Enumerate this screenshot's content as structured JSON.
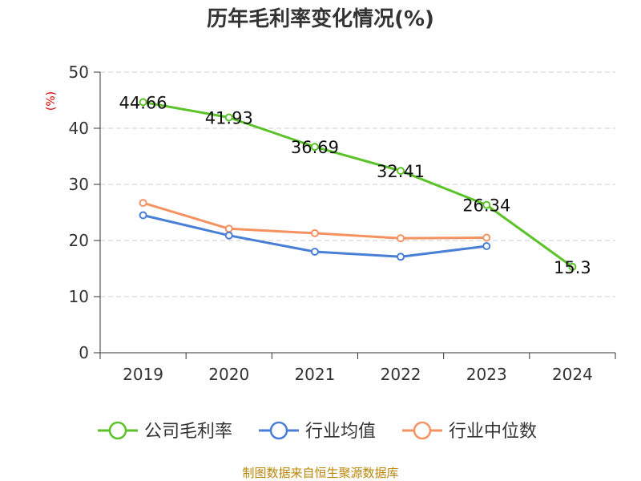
{
  "chart_data": {
    "type": "line",
    "title": "历年毛利率变化情况(%)",
    "ylabel": "(%)",
    "categories": [
      "2019",
      "2020",
      "2021",
      "2022",
      "2023",
      "2024"
    ],
    "y_ticks": [
      "0",
      "10",
      "20",
      "30",
      "40",
      "50"
    ],
    "ylim": [
      0,
      50
    ],
    "grid": true,
    "legend_position": "bottom",
    "series": [
      {
        "name": "公司毛利率",
        "color": "#5cc22a",
        "values": [
          44.66,
          41.93,
          36.69,
          32.41,
          26.34,
          15.3
        ],
        "labels": [
          "44.66",
          "41.93",
          "36.69",
          "32.41",
          "26.34",
          "15.3"
        ]
      },
      {
        "name": "行业均值",
        "color": "#4a7fd6",
        "values": [
          24.5,
          20.9,
          18.0,
          17.1,
          19.0,
          null
        ]
      },
      {
        "name": "行业中位数",
        "color": "#f59262",
        "values": [
          26.7,
          22.1,
          21.3,
          20.4,
          20.5,
          null
        ]
      }
    ],
    "source": "制图数据来自恒生聚源数据库"
  }
}
